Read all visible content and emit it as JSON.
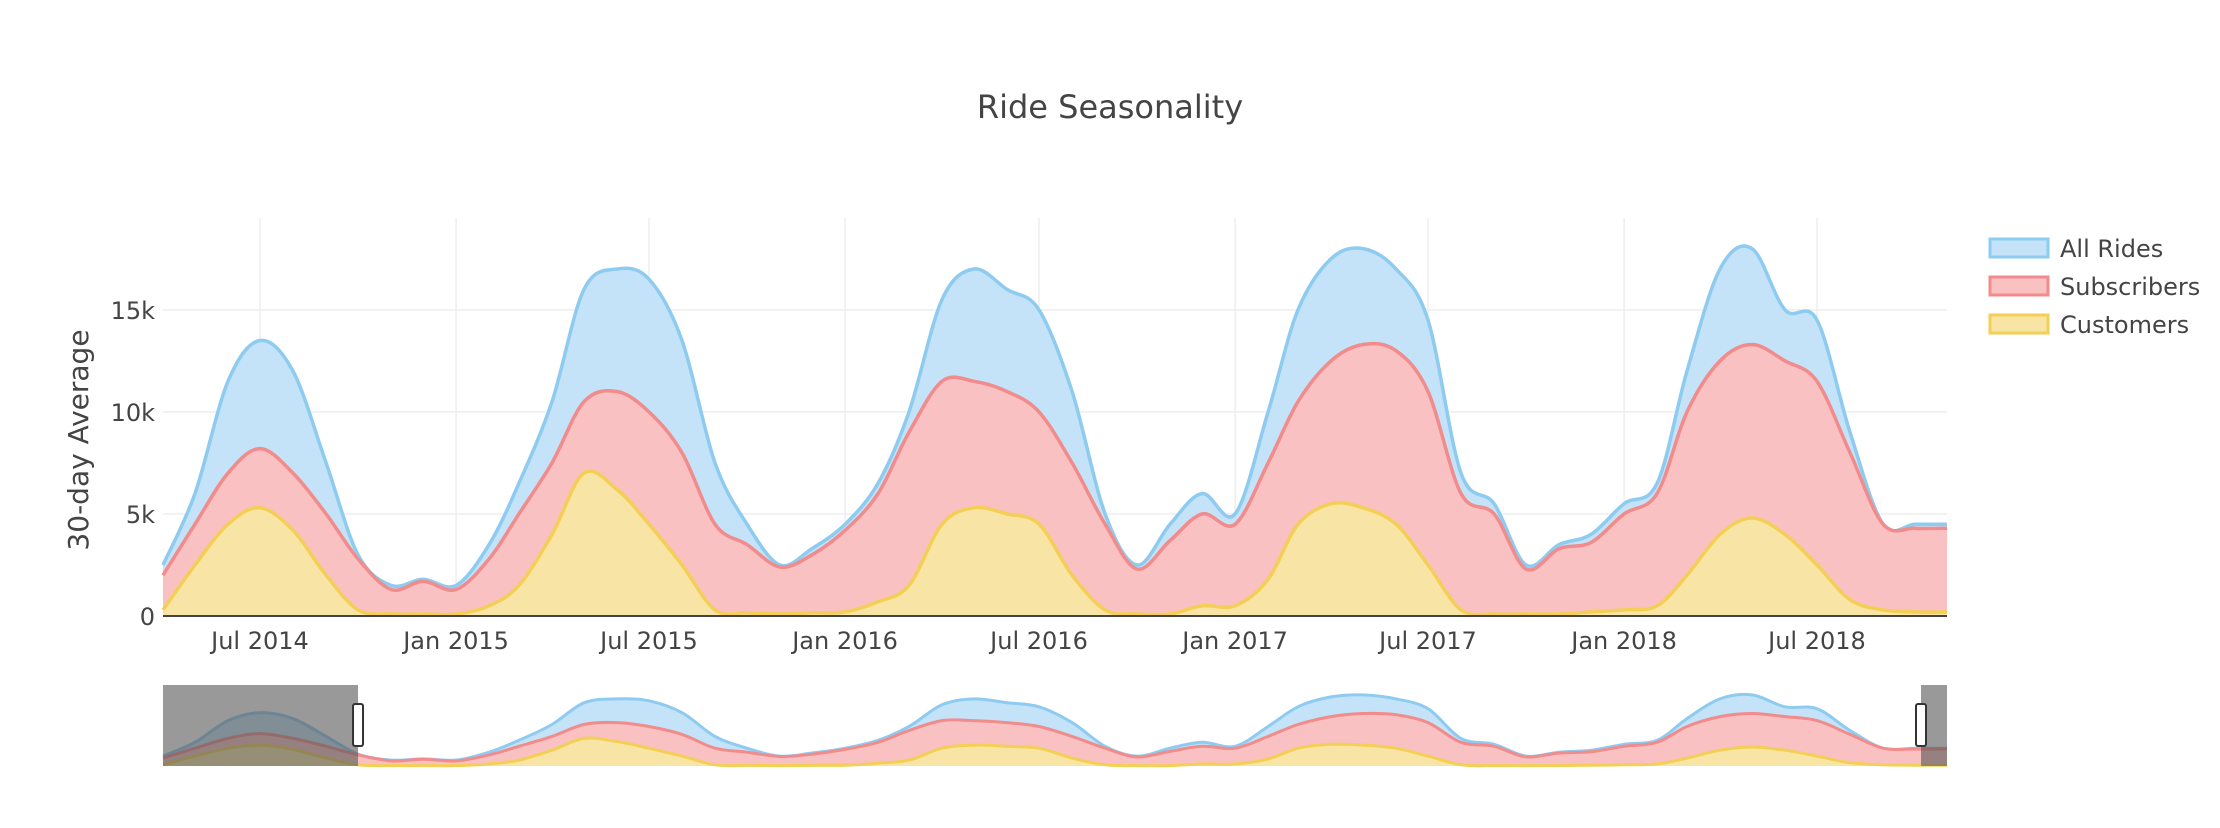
{
  "chart_data": {
    "type": "area",
    "title": "Ride Seasonality",
    "ylabel": "30-day Average",
    "xlabel": "",
    "x_range": [
      "2014-04-01",
      "2018-10-31"
    ],
    "ylim": [
      0,
      19500
    ],
    "y_ticks": [
      {
        "value": 0,
        "label": "0"
      },
      {
        "value": 5000,
        "label": "5k"
      },
      {
        "value": 10000,
        "label": "10k"
      },
      {
        "value": 15000,
        "label": "15k"
      }
    ],
    "x_ticks": [
      {
        "date": "2014-07-01",
        "label": "Jul 2014"
      },
      {
        "date": "2015-01-01",
        "label": "Jan 2015"
      },
      {
        "date": "2015-07-01",
        "label": "Jul 2015"
      },
      {
        "date": "2016-01-01",
        "label": "Jan 2016"
      },
      {
        "date": "2016-07-01",
        "label": "Jul 2016"
      },
      {
        "date": "2017-01-01",
        "label": "Jan 2017"
      },
      {
        "date": "2017-07-01",
        "label": "Jul 2017"
      },
      {
        "date": "2018-01-01",
        "label": "Jan 2018"
      },
      {
        "date": "2018-07-01",
        "label": "Jul 2018"
      }
    ],
    "grid": true,
    "legend_position": "top-right",
    "range_selector": {
      "visible": true,
      "selected_start": "2014-04-01",
      "selected_end": "2014-10-01"
    },
    "dates": [
      "2014-04-01",
      "2014-05-01",
      "2014-06-01",
      "2014-07-01",
      "2014-08-01",
      "2014-09-01",
      "2014-10-01",
      "2014-11-01",
      "2014-12-01",
      "2015-01-01",
      "2015-02-01",
      "2015-03-01",
      "2015-04-01",
      "2015-05-01",
      "2015-06-01",
      "2015-07-01",
      "2015-08-01",
      "2015-09-01",
      "2015-10-01",
      "2015-11-01",
      "2015-12-01",
      "2016-01-01",
      "2016-02-01",
      "2016-03-01",
      "2016-04-01",
      "2016-05-01",
      "2016-06-01",
      "2016-07-01",
      "2016-08-01",
      "2016-09-01",
      "2016-10-01",
      "2016-11-01",
      "2016-12-01",
      "2017-01-01",
      "2017-02-01",
      "2017-03-01",
      "2017-04-01",
      "2017-05-01",
      "2017-06-01",
      "2017-07-01",
      "2017-08-01",
      "2017-09-01",
      "2017-10-01",
      "2017-11-01",
      "2017-12-01",
      "2018-01-01",
      "2018-02-01",
      "2018-03-01",
      "2018-04-01",
      "2018-05-01",
      "2018-06-01",
      "2018-07-01",
      "2018-08-01",
      "2018-09-01",
      "2018-10-01",
      "2018-10-31"
    ],
    "series": [
      {
        "name": "All Rides",
        "color": "#8ecbf0",
        "fill": "#c5e3f8",
        "values": [
          2500,
          6000,
          11500,
          13500,
          12000,
          7500,
          3000,
          1500,
          1800,
          1500,
          3500,
          6500,
          10500,
          16000,
          17000,
          16500,
          13500,
          7500,
          4500,
          2500,
          3300,
          4500,
          6500,
          10000,
          15500,
          17000,
          16000,
          15000,
          11000,
          5000,
          2500,
          4500,
          6000,
          5000,
          10000,
          15000,
          17500,
          18000,
          17000,
          14500,
          7000,
          5500,
          2500,
          3500,
          4000,
          5500,
          6500,
          12000,
          17000,
          18000,
          15000,
          14500,
          9000,
          4500,
          4500,
          4500
        ]
      },
      {
        "name": "Subscribers",
        "color": "#f28b8b",
        "fill": "#f9c1c1",
        "values": [
          2000,
          4500,
          7000,
          8200,
          7000,
          5000,
          2800,
          1300,
          1700,
          1300,
          2800,
          5000,
          7500,
          10500,
          11000,
          10000,
          8000,
          4500,
          3500,
          2400,
          3000,
          4200,
          6000,
          9000,
          11500,
          11500,
          11000,
          10000,
          7500,
          4500,
          2300,
          3700,
          5000,
          4500,
          7500,
          10500,
          12500,
          13300,
          13000,
          11000,
          6000,
          5000,
          2300,
          3300,
          3600,
          5000,
          6000,
          10000,
          12500,
          13300,
          12500,
          11500,
          8000,
          4500,
          4300,
          4300
        ]
      },
      {
        "name": "Customers",
        "color": "#f3cf55",
        "fill": "#f8e5a6",
        "values": [
          300,
          2500,
          4500,
          5300,
          4200,
          2000,
          300,
          100,
          100,
          100,
          500,
          1500,
          4000,
          7000,
          6200,
          4500,
          2500,
          300,
          150,
          100,
          150,
          200,
          700,
          1500,
          4500,
          5300,
          5000,
          4500,
          2000,
          300,
          100,
          100,
          500,
          500,
          1800,
          4500,
          5500,
          5300,
          4500,
          2500,
          300,
          100,
          100,
          100,
          200,
          300,
          500,
          2000,
          4000,
          4800,
          4000,
          2500,
          800,
          300,
          200,
          200
        ]
      }
    ]
  }
}
